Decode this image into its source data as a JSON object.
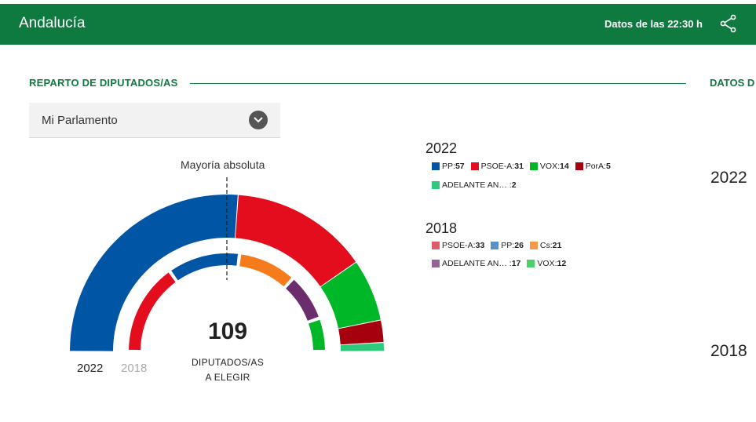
{
  "header": {
    "region": "Andalucía",
    "time_label": "Datos de las 22:30 h"
  },
  "section": {
    "title": "REPARTO DE DIPUTADOS/AS",
    "right_title": "DATOS D"
  },
  "select": {
    "value": "Mi Parlamento"
  },
  "chart": {
    "majority_label": "Mayoría absoluta",
    "total": "109",
    "caption_line1": "DIPUTADOS/AS",
    "caption_line2": "A ELEGIR",
    "year_active": "2022",
    "year_inactive": "2018"
  },
  "chart_data": {
    "type": "hemicycle",
    "total_seats": 109,
    "majority": 55,
    "series": [
      {
        "name": "2022",
        "parties": [
          {
            "name": "PP",
            "seats": 57,
            "color": "#0055a5"
          },
          {
            "name": "PSOE-A",
            "seats": 31,
            "color": "#e30d1d"
          },
          {
            "name": "VOX",
            "seats": 14,
            "color": "#00b827"
          },
          {
            "name": "PorA",
            "seats": 5,
            "color": "#a6000e"
          },
          {
            "name": "ADELANTE AN…",
            "seats": 2,
            "color": "#2ec97a"
          }
        ]
      },
      {
        "name": "2018",
        "parties": [
          {
            "name": "PSOE-A",
            "seats": 33,
            "color": "#e30d1d"
          },
          {
            "name": "PP",
            "seats": 26,
            "color": "#0055a5"
          },
          {
            "name": "Cs",
            "seats": 21,
            "color": "#f57b1b"
          },
          {
            "name": "ADELANTE AN…",
            "seats": 17,
            "color": "#6b2d6b"
          },
          {
            "name": "VOX",
            "seats": 12,
            "color": "#00b827"
          }
        ]
      }
    ]
  },
  "legend": {
    "y2022": {
      "year": "2022",
      "row1": [
        {
          "name": "PP:",
          "seats": "57",
          "color": "#0055a5"
        },
        {
          "name": "PSOE-A:",
          "seats": "31",
          "color": "#e30d1d"
        },
        {
          "name": "VOX:",
          "seats": "14",
          "color": "#00b827"
        },
        {
          "name": "PorA:",
          "seats": "5",
          "color": "#a6000e"
        }
      ],
      "row2": [
        {
          "name": "ADELANTE AN…   :",
          "seats": "2",
          "color": "#2ec97a"
        }
      ]
    },
    "y2018": {
      "year": "2018",
      "row1": [
        {
          "name": "PSOE-A:",
          "seats": "33",
          "color": "#e05a6a"
        },
        {
          "name": "PP:",
          "seats": "26",
          "color": "#5a8fc8"
        },
        {
          "name": "Cs:",
          "seats": "21",
          "color": "#f5984a"
        }
      ],
      "row2": [
        {
          "name": "ADELANTE AN…   :",
          "seats": "17",
          "color": "#946394"
        },
        {
          "name": "VOX:",
          "seats": "12",
          "color": "#4cd06a"
        }
      ]
    }
  },
  "right_panel": {
    "year_a": "2022",
    "year_b": "2018"
  }
}
